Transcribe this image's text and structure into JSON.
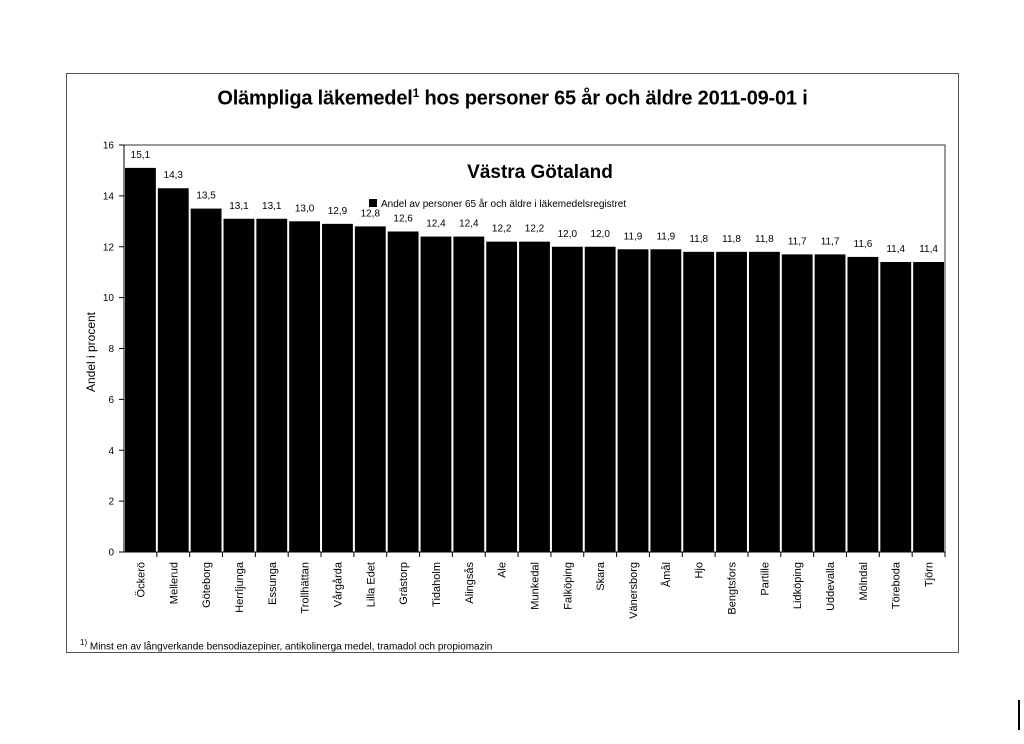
{
  "title": {
    "main": "Olämpliga läkemedel",
    "sup": "1",
    "rest": " hos personer 65 år och äldre 2011-09-01 i"
  },
  "footnote": {
    "mark": "1)",
    "text": " Minst en av långverkande bensodiazepiner, antikolinerga medel, tramadol och propiomazin"
  },
  "chart_data": {
    "type": "bar",
    "subtitle": "Västra Götaland",
    "ylabel": "Andel i procent",
    "ylim": [
      0,
      16
    ],
    "yticks": [
      0,
      2,
      4,
      6,
      8,
      10,
      12,
      14,
      16
    ],
    "grid": false,
    "legend_position": "top-center",
    "bar_color": "#000000",
    "categories": [
      "Öckerö",
      "Mellerud",
      "Göteborg",
      "Herrljunga",
      "Essunga",
      "Trollhättan",
      "Vårgårda",
      "Lilla Edet",
      "Grästorp",
      "Tidaholm",
      "Alingsås",
      "Ale",
      "Munkedal",
      "Falköping",
      "Skara",
      "Vänersborg",
      "Åmål",
      "Hjo",
      "Bengtsfors",
      "Partille",
      "Lidköping",
      "Uddevalla",
      "Mölndal",
      "Töreboda",
      "Tjörn"
    ],
    "series": [
      {
        "name": "Andel av personer 65 år och äldre i läkemedelsregistret",
        "values": [
          15.1,
          14.3,
          13.5,
          13.1,
          13.1,
          13.0,
          12.9,
          12.8,
          12.6,
          12.4,
          12.4,
          12.2,
          12.2,
          12.0,
          12.0,
          11.9,
          11.9,
          11.8,
          11.8,
          11.8,
          11.7,
          11.7,
          11.6,
          11.4,
          11.4
        ],
        "labels": [
          "15,1",
          "14,3",
          "13,5",
          "13,1",
          "13,1",
          "13,0",
          "12,9",
          "12,8",
          "12,6",
          "12,4",
          "12,4",
          "12,2",
          "12,2",
          "12,0",
          "12,0",
          "11,9",
          "11,9",
          "11,8",
          "11,8",
          "11,8",
          "11,7",
          "11,7",
          "11,6",
          "11,4",
          "11,4"
        ]
      }
    ]
  }
}
